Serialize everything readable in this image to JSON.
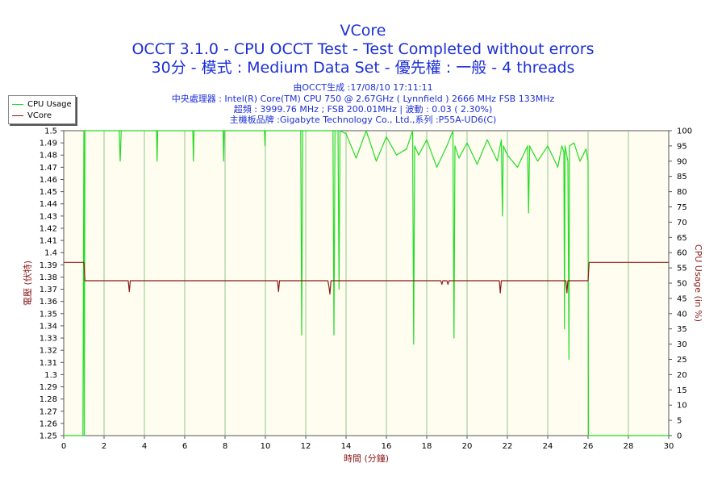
{
  "chart_data": {
    "type": "line",
    "title": "VCore",
    "subtitle_line1": "OCCT 3.1.0 - CPU OCCT Test - Test Completed without errors",
    "subtitle_line2": "30分 - 模式 : Medium Data Set - 優先權 : 一般 - 4 threads",
    "info_lines": [
      "由OCCT生成 :17/08/10 17:11:11",
      "中央處理器 : Intel(R) Core(TM) CPU 750 @ 2.67GHz ( Lynnfield ) 2666 MHz FSB 133MHz",
      "超頻 : 3999.76 MHz ; FSB 200.01MHz | 波動 : 0.03 ( 2.30%)",
      "主機板品牌 :Gigabyte Technology Co., Ltd.,系列 :P55A-UD6(C)"
    ],
    "xlabel": "時間 (分鐘)",
    "ylabel_left": "電壓 (伏特)",
    "ylabel_right": "CPU Usage (in %)",
    "xlim": [
      0,
      30
    ],
    "ylim_left": [
      1.25,
      1.5
    ],
    "ylim_right": [
      0,
      100
    ],
    "x_ticks": [
      "0",
      "2",
      "4",
      "6",
      "8",
      "10",
      "12",
      "14",
      "16",
      "18",
      "20",
      "22",
      "24",
      "26",
      "28",
      "30"
    ],
    "y_left_ticks": [
      "1.25",
      "1.26",
      "1.27",
      "1.28",
      "1.29",
      "1.3",
      "1.31",
      "1.32",
      "1.33",
      "1.34",
      "1.35",
      "1.36",
      "1.37",
      "1.38",
      "1.39",
      "1.4",
      "1.41",
      "1.42",
      "1.43",
      "1.44",
      "1.45",
      "1.46",
      "1.47",
      "1.48",
      "1.49",
      "1.5"
    ],
    "y_right_ticks": [
      "0",
      "5",
      "10",
      "15",
      "20",
      "25",
      "30",
      "35",
      "40",
      "45",
      "50",
      "55",
      "60",
      "65",
      "70",
      "75",
      "80",
      "85",
      "90",
      "95",
      "100"
    ],
    "grid": true,
    "legend_position": "top-left",
    "series": [
      {
        "name": "CPU Usage",
        "axis": "right",
        "color": "#22dd22",
        "x": [
          0,
          0.95,
          1.0,
          1.02,
          1.05,
          1.08,
          1.5,
          2.0,
          2.75,
          2.8,
          2.85,
          3.5,
          4.6,
          4.63,
          4.66,
          5.5,
          6.4,
          6.43,
          6.46,
          7.0,
          7.9,
          7.93,
          7.96,
          9.0,
          9.95,
          9.98,
          10.0,
          11.0,
          11.75,
          11.8,
          11.85,
          12.5,
          13.35,
          13.4,
          13.45,
          13.6,
          13.65,
          13.7,
          14.0,
          14.5,
          15.0,
          15.5,
          16.0,
          16.5,
          17.0,
          17.3,
          17.35,
          17.4,
          17.6,
          18.0,
          18.5,
          19.0,
          19.3,
          19.35,
          19.4,
          19.6,
          20.0,
          20.5,
          21.0,
          21.5,
          21.7,
          21.75,
          21.8,
          22.0,
          22.5,
          23.0,
          23.05,
          23.1,
          23.5,
          24.0,
          24.5,
          24.7,
          24.8,
          24.83,
          24.86,
          25.0,
          25.05,
          25.08,
          25.3,
          25.6,
          25.9,
          26.0,
          26.02,
          26.05,
          30.0
        ],
        "values": [
          0,
          0,
          100,
          0,
          100,
          100,
          100,
          100,
          100,
          90,
          100,
          100,
          100,
          90,
          100,
          100,
          100,
          90,
          100,
          100,
          100,
          90,
          100,
          100,
          100,
          95,
          100,
          100,
          100,
          33,
          100,
          100,
          100,
          33,
          100,
          100,
          48,
          100,
          99,
          91,
          100,
          90,
          98,
          92,
          94,
          100,
          30,
          95,
          92,
          97,
          88,
          95,
          100,
          32,
          95,
          91,
          96,
          89,
          97,
          90,
          97,
          72,
          95,
          92,
          88,
          95,
          73,
          95,
          90,
          95,
          88,
          95,
          93,
          35,
          95,
          90,
          25,
          95,
          96,
          90,
          94,
          90,
          0,
          0,
          0
        ]
      },
      {
        "name": "VCore",
        "axis": "left",
        "color": "#8b1a1a",
        "x": [
          0,
          1.0,
          1.05,
          3.2,
          3.25,
          3.3,
          10.6,
          10.65,
          10.7,
          13.1,
          13.15,
          13.2,
          13.25,
          18.7,
          18.75,
          18.8,
          19.0,
          19.05,
          19.1,
          21.6,
          21.65,
          21.7,
          24.9,
          24.95,
          25.0,
          26.0,
          26.05,
          30.0
        ],
        "values": [
          1.392,
          1.392,
          1.377,
          1.377,
          1.368,
          1.377,
          1.377,
          1.368,
          1.377,
          1.377,
          1.372,
          1.366,
          1.377,
          1.377,
          1.374,
          1.377,
          1.377,
          1.374,
          1.377,
          1.377,
          1.367,
          1.377,
          1.377,
          1.367,
          1.377,
          1.377,
          1.392,
          1.392
        ]
      }
    ]
  }
}
